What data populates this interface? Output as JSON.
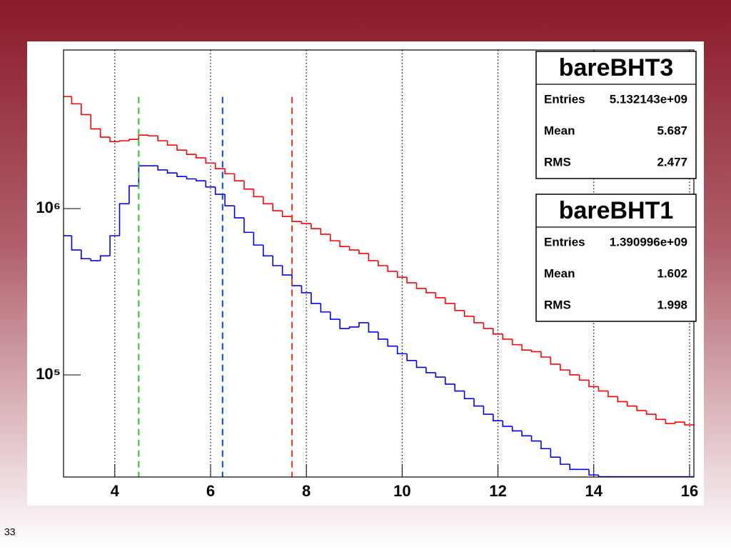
{
  "slide_number": "33",
  "chart_data": {
    "type": "histogram",
    "bins": [
      2.9,
      3.1,
      3.3,
      3.5,
      3.7,
      3.9,
      4.1,
      4.3,
      4.5,
      4.7,
      4.9,
      5.1,
      5.3,
      5.5,
      5.7,
      5.9,
      6.1,
      6.3,
      6.5,
      6.7,
      6.9,
      7.1,
      7.3,
      7.5,
      7.7,
      7.9,
      8.1,
      8.3,
      8.5,
      8.7,
      8.9,
      9.1,
      9.3,
      9.5,
      9.7,
      9.9,
      10.1,
      10.3,
      10.5,
      10.7,
      10.9,
      11.1,
      11.3,
      11.5,
      11.7,
      11.9,
      12.1,
      12.3,
      12.5,
      12.7,
      12.9,
      13.1,
      13.3,
      13.5,
      13.7,
      13.9,
      14.1,
      14.3,
      14.5,
      14.7,
      14.9,
      15.1,
      15.3,
      15.5,
      15.7,
      15.9,
      16.1
    ],
    "series": [
      {
        "name": "bareBHT3",
        "color": "#ff0000",
        "values": [
          4720000,
          4270000,
          3680000,
          3020000,
          2690000,
          2530000,
          2560000,
          2610000,
          2770000,
          2740000,
          2560000,
          2410000,
          2250000,
          2120000,
          2020000,
          1880000,
          1740000,
          1620000,
          1470000,
          1310000,
          1180000,
          1070000,
          970000,
          897000,
          837000,
          813000,
          758000,
          701000,
          641000,
          592000,
          564000,
          537000,
          486000,
          454000,
          419000,
          387000,
          358000,
          331000,
          312000,
          291000,
          269000,
          244000,
          225000,
          206000,
          190000,
          176000,
          164000,
          152000,
          141000,
          138000,
          128000,
          116000,
          107000,
          100000,
          93000,
          85000,
          80000,
          74000,
          69000,
          65000,
          61000,
          58000,
          54000,
          51000,
          52000,
          50000
        ],
        "stats": [
          [
            "Entries",
            "5.132143e+09"
          ],
          [
            "Mean",
            "5.687"
          ],
          [
            "RMS",
            "2.477"
          ]
        ]
      },
      {
        "name": "bareBHT1",
        "color": "#0000ff",
        "values": [
          687000,
          564000,
          500000,
          486000,
          520000,
          687000,
          1070000,
          1370000,
          1810000,
          1810000,
          1710000,
          1640000,
          1560000,
          1510000,
          1470000,
          1350000,
          1220000,
          1040000,
          880000,
          720000,
          604000,
          520000,
          454000,
          399000,
          344000,
          312000,
          269000,
          239000,
          216000,
          190000,
          194000,
          206000,
          181000,
          164000,
          149000,
          134000,
          122000,
          111000,
          103000,
          97000,
          88000,
          80000,
          72000,
          65000,
          58000,
          53000,
          49000,
          46000,
          43000,
          40000,
          36000,
          32000,
          29000,
          27000,
          27000,
          25000,
          24400,
          24400,
          24400,
          24400,
          24400,
          24400,
          24400,
          24400,
          24400,
          24400
        ],
        "stats": [
          [
            "Entries",
            "1.390996e+09"
          ],
          [
            "Mean",
            "1.602"
          ],
          [
            "RMS",
            "1.998"
          ]
        ]
      }
    ],
    "markers": [
      {
        "x": 4.5,
        "top": 4700000,
        "color": "#22cc22"
      },
      {
        "x": 6.25,
        "top": 4700000,
        "color": "#0044ff"
      },
      {
        "x": 7.7,
        "top": 4700000,
        "color": "#ff3311"
      }
    ],
    "xlim": [
      2.93,
      16.09
    ],
    "ylim": [
      24300,
      9000000
    ],
    "log_y": true,
    "xticks": [
      4,
      6,
      8,
      10,
      12,
      14,
      16
    ],
    "yticks": [
      {
        "value": 100000,
        "label": "10⁵"
      },
      {
        "value": 1000000,
        "label": "10⁶"
      }
    ],
    "grid_x": true
  }
}
